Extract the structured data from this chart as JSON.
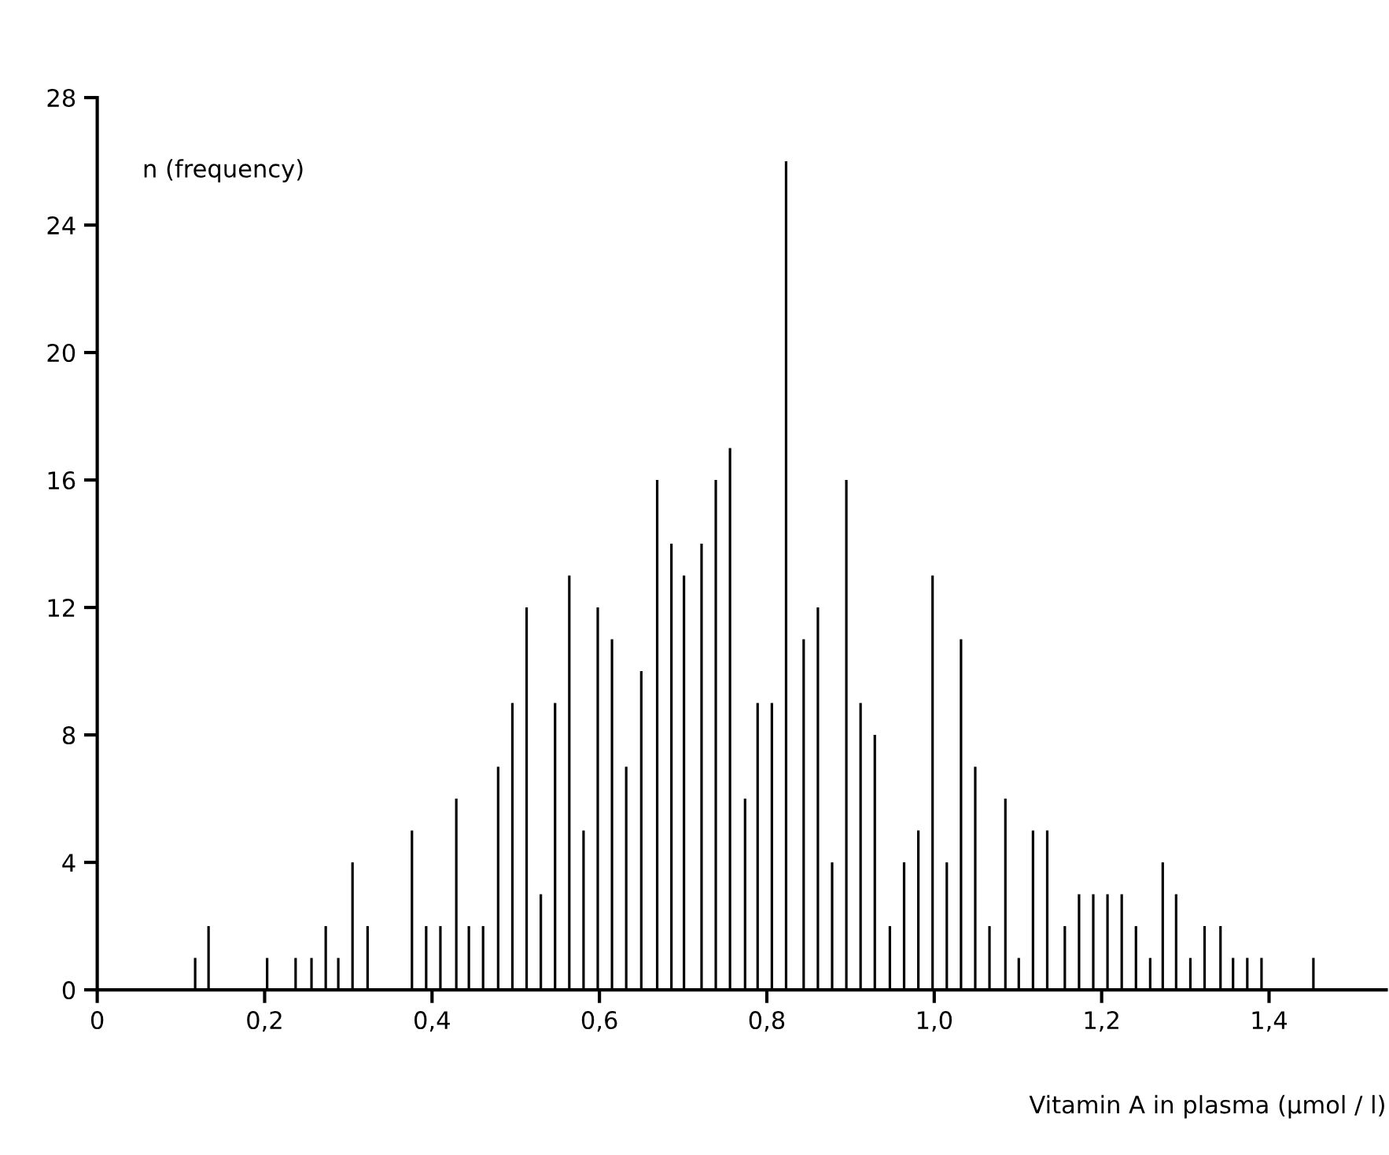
{
  "chart_data": {
    "type": "bar",
    "xlabel": "Vitamin A in plasma (µmol / l)",
    "ylabel": "n (frequency)",
    "x": [
      0.117,
      0.133,
      0.203,
      0.237,
      0.256,
      0.273,
      0.288,
      0.305,
      0.323,
      0.376,
      0.393,
      0.41,
      0.429,
      0.444,
      0.461,
      0.479,
      0.496,
      0.513,
      0.53,
      0.547,
      0.564,
      0.581,
      0.598,
      0.615,
      0.632,
      0.65,
      0.669,
      0.686,
      0.701,
      0.722,
      0.739,
      0.756,
      0.774,
      0.789,
      0.806,
      0.823,
      0.844,
      0.861,
      0.878,
      0.895,
      0.912,
      0.929,
      0.947,
      0.964,
      0.981,
      0.998,
      1.015,
      1.032,
      1.049,
      1.066,
      1.085,
      1.101,
      1.118,
      1.135,
      1.156,
      1.173,
      1.19,
      1.207,
      1.224,
      1.241,
      1.258,
      1.273,
      1.289,
      1.306,
      1.323,
      1.342,
      1.357,
      1.374,
      1.391,
      1.453
    ],
    "values": [
      1,
      2,
      1,
      1,
      1,
      2,
      1,
      4,
      2,
      5,
      2,
      2,
      6,
      2,
      2,
      7,
      9,
      12,
      3,
      9,
      13,
      5,
      12,
      11,
      7,
      10,
      16,
      14,
      13,
      14,
      16,
      17,
      6,
      9,
      9,
      26,
      11,
      12,
      4,
      16,
      9,
      8,
      2,
      4,
      5,
      13,
      4,
      11,
      7,
      2,
      6,
      1,
      5,
      5,
      2,
      3,
      3,
      3,
      3,
      2,
      1,
      4,
      3,
      1,
      2,
      2,
      1,
      1,
      1,
      1
    ],
    "color": "#000000",
    "xlim": [
      0,
      1.54
    ],
    "xticks": [
      0,
      {
        "value": 0.2,
        "label": "0,2"
      },
      {
        "value": 0.4,
        "label": "0,4"
      },
      {
        "value": 0.6,
        "label": "0,6"
      },
      {
        "value": 0.8,
        "label": "0,8"
      },
      {
        "value": 1.0,
        "label": "1,0"
      },
      {
        "value": 1.2,
        "label": "1,2"
      },
      {
        "value": 1.4,
        "label": "1,4"
      }
    ],
    "ylim": [
      0,
      28
    ],
    "yticks": [
      0,
      4,
      8,
      12,
      16,
      20,
      24,
      28
    ],
    "grid": false,
    "legend": false
  }
}
